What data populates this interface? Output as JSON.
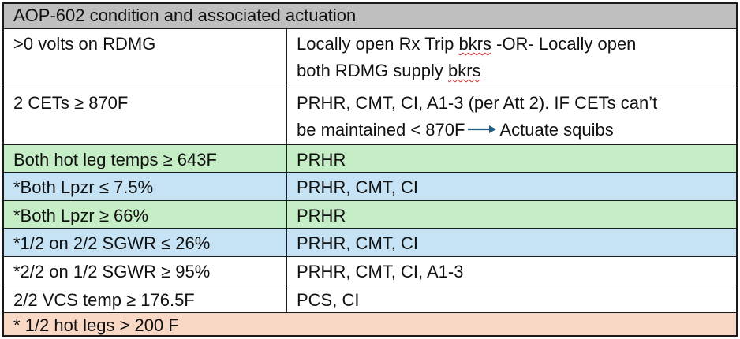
{
  "table": {
    "header": "AOP-602 condition and associated actuation",
    "rows": [
      {
        "condition": ">0 volts on RDMG",
        "action_line1_a": "Locally open Rx Trip ",
        "action_line1_b": "bkrs",
        "action_line1_c": " -OR- Locally open",
        "action_line2_a": "both RDMG supply ",
        "action_line2_b": "bkrs",
        "color": "#ffffff"
      },
      {
        "condition": "2 CETs ≥ 870F",
        "action_line1": "PRHR, CMT, CI, A1-3 (per Att 2). IF CETs can’t",
        "action_line2_a": "be maintained < 870F",
        "action_line2_b": "Actuate squibs",
        "color": "#ffffff"
      },
      {
        "condition": "Both hot leg temps ≥ 643F",
        "action": "PRHR",
        "color": "#c6eec6"
      },
      {
        "condition": "*Both Lpzr ≤ 7.5%",
        "action": "PRHR, CMT, CI",
        "color": "#c5e3f4"
      },
      {
        "condition": "*Both Lpzr ≥ 66%",
        "action": "PRHR",
        "color": "#c6eec6"
      },
      {
        "condition": "*1/2 on 2/2 SGWR ≤ 26%",
        "action": "PRHR, CMT, CI",
        "color": "#c5e3f4"
      },
      {
        "condition": "*2/2 on 1/2 SGWR ≥ 95%",
        "action": "PRHR, CMT, CI, A1-3",
        "color": "#ffffff"
      },
      {
        "condition": "2/2 VCS temp ≥ 176.5F",
        "action": "PCS, CI",
        "color": "#ffffff"
      }
    ],
    "footer": "* 1/2 hot legs > 200 F",
    "colors": {
      "header": "#bfbfbf",
      "green": "#c6eec6",
      "blue": "#c5e3f4",
      "peach": "#f9d9c6",
      "arrow": "#1f5f86",
      "spellcheck": "#d03030"
    }
  }
}
